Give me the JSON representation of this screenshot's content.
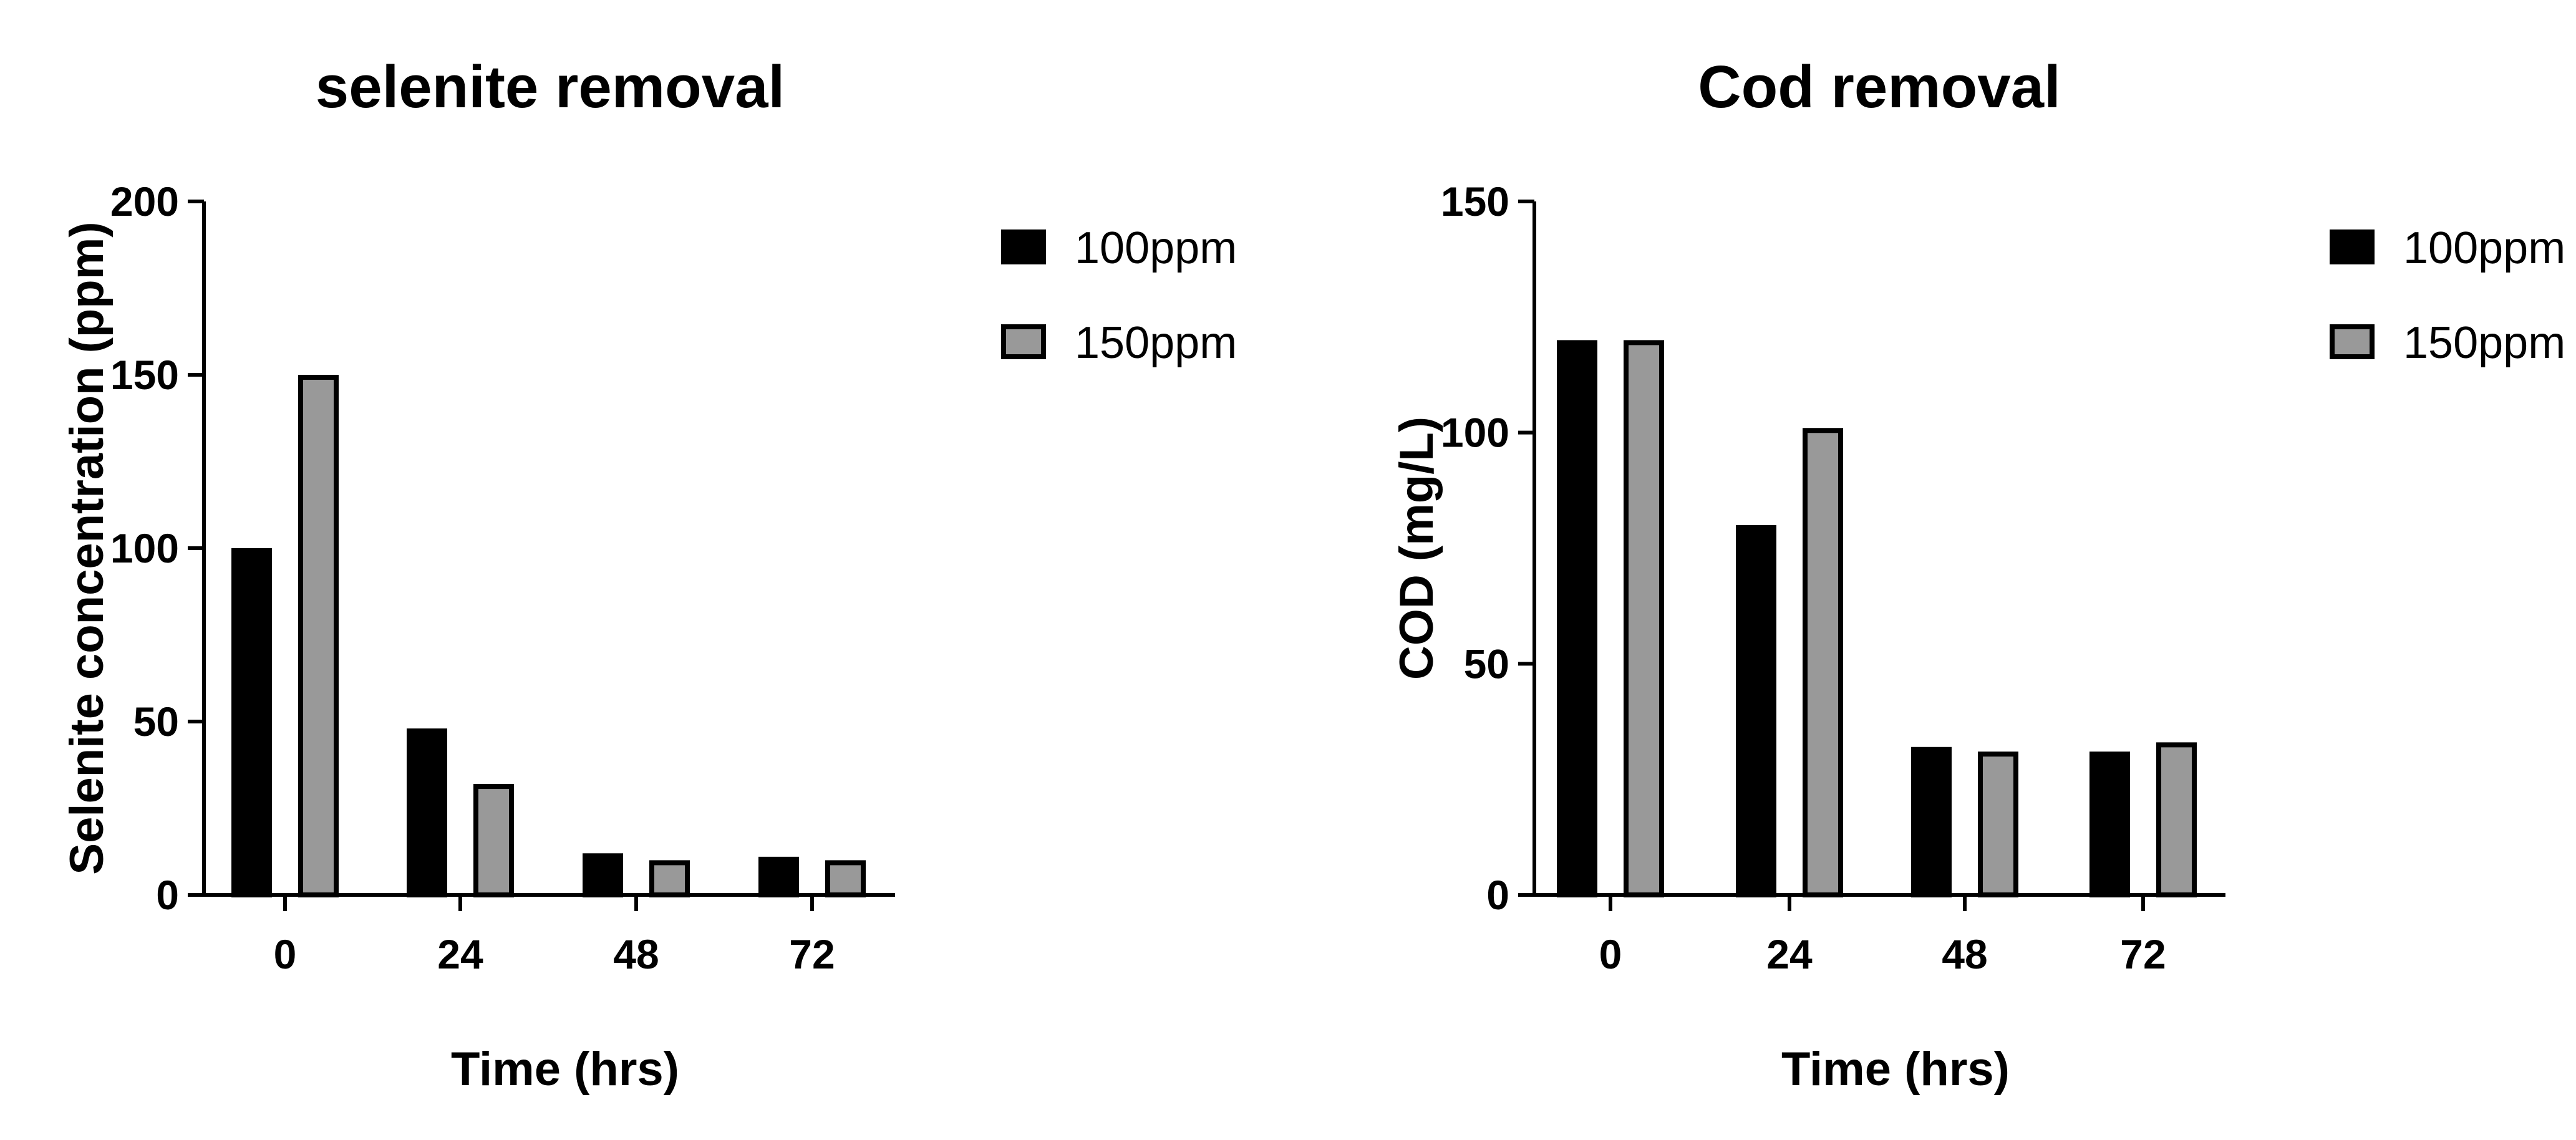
{
  "chart_data": [
    {
      "type": "bar",
      "title": "selenite removal",
      "xlabel": "Time (hrs)",
      "ylabel": "Selenite concentration (ppm)",
      "categories": [
        "0",
        "24",
        "48",
        "72"
      ],
      "ylim": [
        0,
        200
      ],
      "yticks": [
        0,
        50,
        100,
        150,
        200
      ],
      "grid": false,
      "legend_position": "top-right",
      "series": [
        {
          "name": "100ppm",
          "color": "#000000",
          "values": [
            100,
            48,
            12,
            11
          ]
        },
        {
          "name": "150ppm",
          "color": "#999999",
          "values": [
            150,
            32,
            10,
            10
          ]
        }
      ]
    },
    {
      "type": "bar",
      "title": "Cod removal",
      "xlabel": "Time (hrs)",
      "ylabel": "COD (mg/L)",
      "categories": [
        "0",
        "24",
        "48",
        "72"
      ],
      "ylim": [
        0,
        150
      ],
      "yticks": [
        0,
        50,
        100,
        150
      ],
      "grid": false,
      "legend_position": "top-right",
      "series": [
        {
          "name": "100ppm",
          "color": "#000000",
          "values": [
            120,
            80,
            32,
            31
          ]
        },
        {
          "name": "150ppm",
          "color": "#999999",
          "values": [
            120,
            101,
            31,
            33
          ]
        }
      ]
    }
  ]
}
